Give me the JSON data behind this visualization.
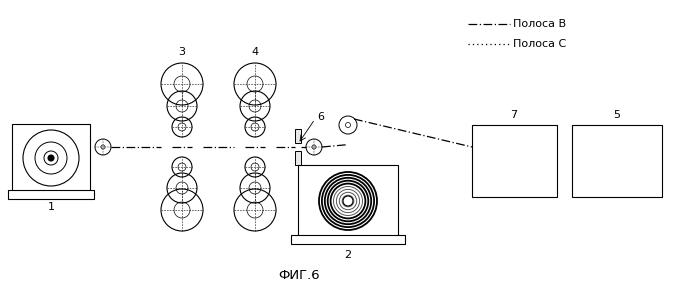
{
  "title": "ФИГ.6",
  "legend_B": "Полоса В",
  "legend_C": "Полоса С",
  "bg_color": "#ffffff",
  "line_color": "#000000",
  "label1": "1",
  "label2": "2",
  "label3": "3",
  "label4": "4",
  "label5": "5",
  "label6": "6",
  "label7": "7",
  "figw": 6.98,
  "figh": 3.02,
  "dpi": 100
}
